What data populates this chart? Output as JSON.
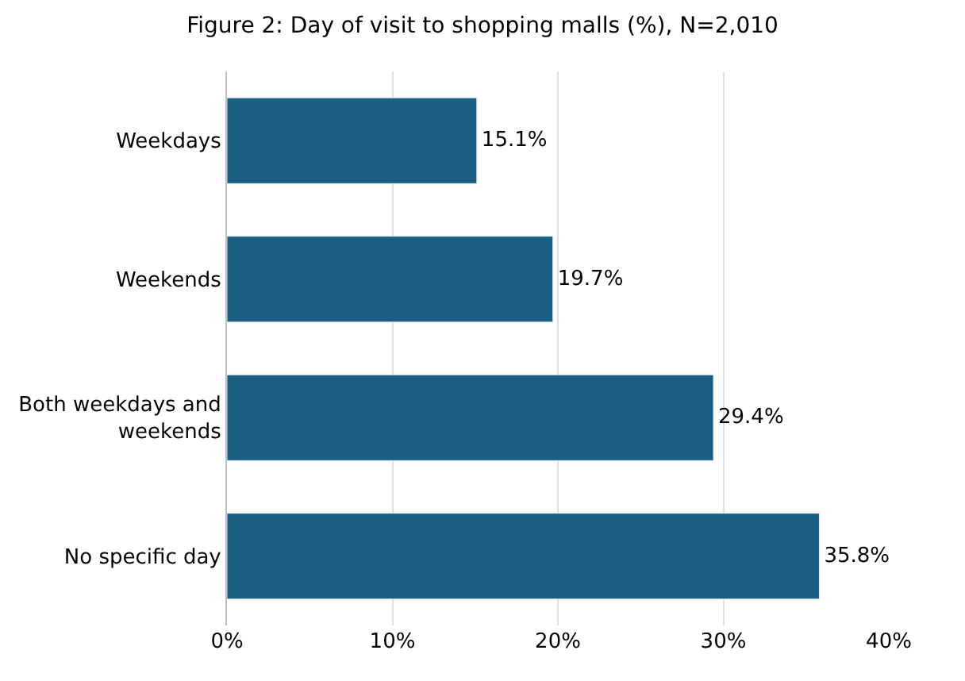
{
  "chart_data": {
    "type": "bar",
    "orientation": "horizontal",
    "title": "Figure 2: Day of visit to shopping malls (%), N=2,010",
    "categories": [
      "Weekdays",
      "Weekends",
      "Both weekdays and\nweekends",
      "No specific day"
    ],
    "values": [
      15.1,
      19.7,
      29.4,
      35.8
    ],
    "color": "#1a5f82",
    "value_labels": [
      "15.1%",
      "19.7%",
      "29.4%",
      "35.8%"
    ],
    "xlim": [
      0,
      40
    ],
    "xticks": [
      {
        "value": 0,
        "label": "0%"
      },
      {
        "value": 10,
        "label": "10%"
      },
      {
        "value": 20,
        "label": "20%"
      },
      {
        "value": 30,
        "label": "30%"
      },
      {
        "value": 40,
        "label": "40%"
      }
    ],
    "grid": "x",
    "legend": false
  }
}
